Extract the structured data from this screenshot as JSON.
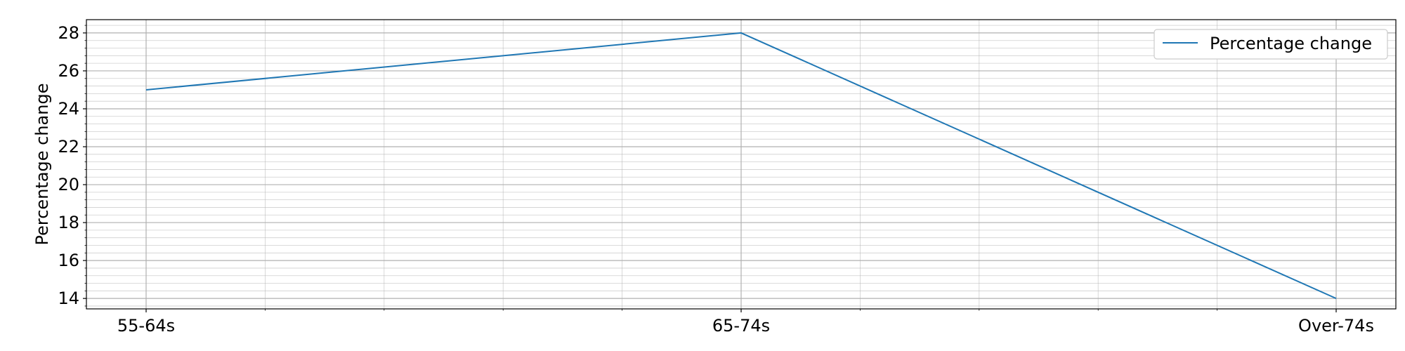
{
  "chart_data": {
    "type": "line",
    "categories": [
      "55-64s",
      "65-74s",
      "Over-74s"
    ],
    "series": [
      {
        "name": "Percentage change",
        "values": [
          25,
          28,
          14
        ],
        "color": "#1f77b4"
      }
    ],
    "title": "",
    "xlabel": "",
    "ylabel": "Percentage change",
    "ylim": [
      13.45,
      28.7
    ],
    "yticks": [
      14,
      16,
      18,
      20,
      22,
      24,
      26,
      28
    ],
    "y_minor_step": 0.4,
    "x_minor_per_interval": 5,
    "grid": true,
    "legend": "top-right"
  }
}
